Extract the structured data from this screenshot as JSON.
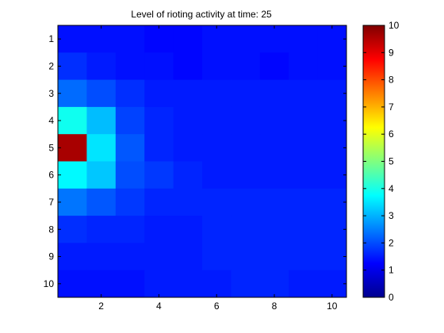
{
  "chart_data": {
    "type": "heatmap",
    "title": "Level of rioting activity at time: 25",
    "xlabel": "",
    "ylabel": "",
    "x_ticks": [
      2,
      4,
      6,
      8,
      10
    ],
    "y_ticks": [
      1,
      2,
      3,
      4,
      5,
      6,
      7,
      8,
      9,
      10
    ],
    "xlim": [
      0.5,
      10.5
    ],
    "ylim": [
      0.5,
      10.5
    ],
    "colormap": "jet",
    "clim": [
      0,
      10
    ],
    "colorbar_ticks": [
      0,
      1,
      2,
      3,
      4,
      5,
      6,
      7,
      8,
      9,
      10
    ],
    "rows": [
      1,
      2,
      3,
      4,
      5,
      6,
      7,
      8,
      9,
      10
    ],
    "cols": [
      1,
      2,
      3,
      4,
      5,
      6,
      7,
      8,
      9,
      10
    ],
    "values": [
      [
        1.4,
        1.4,
        1.4,
        1.3,
        1.3,
        1.4,
        1.4,
        1.4,
        1.4,
        1.4
      ],
      [
        1.7,
        1.5,
        1.4,
        1.4,
        1.3,
        1.4,
        1.4,
        1.3,
        1.4,
        1.4
      ],
      [
        2.3,
        2.0,
        1.7,
        1.5,
        1.5,
        1.5,
        1.5,
        1.5,
        1.5,
        1.5
      ],
      [
        3.9,
        3.1,
        1.9,
        1.6,
        1.5,
        1.5,
        1.5,
        1.5,
        1.5,
        1.5
      ],
      [
        9.6,
        3.5,
        2.1,
        1.6,
        1.5,
        1.5,
        1.5,
        1.5,
        1.5,
        1.5
      ],
      [
        3.7,
        3.2,
        2.0,
        1.8,
        1.6,
        1.5,
        1.5,
        1.5,
        1.5,
        1.5
      ],
      [
        2.4,
        2.1,
        1.8,
        1.6,
        1.6,
        1.6,
        1.6,
        1.6,
        1.6,
        1.6
      ],
      [
        1.7,
        1.6,
        1.6,
        1.5,
        1.5,
        1.6,
        1.6,
        1.6,
        1.6,
        1.6
      ],
      [
        1.5,
        1.5,
        1.5,
        1.5,
        1.5,
        1.6,
        1.6,
        1.6,
        1.6,
        1.6
      ],
      [
        1.4,
        1.4,
        1.4,
        1.5,
        1.5,
        1.5,
        1.6,
        1.6,
        1.5,
        1.5
      ]
    ]
  }
}
